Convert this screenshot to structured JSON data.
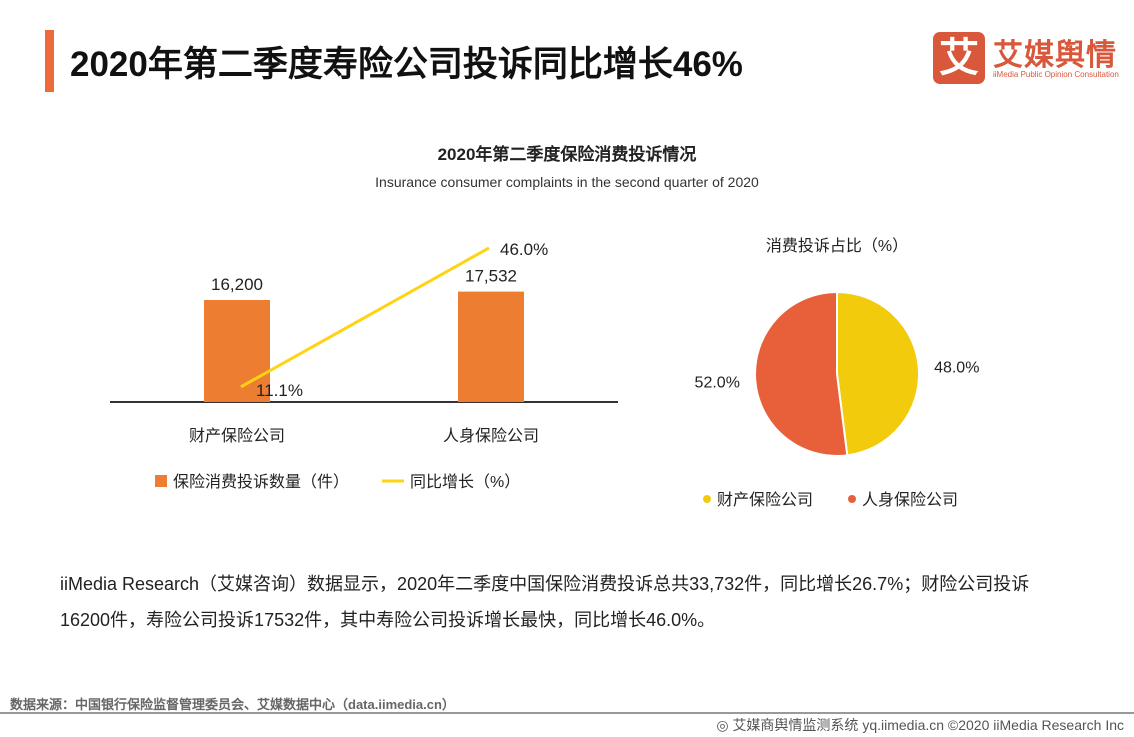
{
  "header": {
    "title": "2020年第二季度寿险公司投诉同比增长46%",
    "accent_color": "#ED6A3A"
  },
  "logo": {
    "glyph": "艾",
    "name": "艾媒舆情",
    "tagline": "iiMedia Public Opinion Consultation"
  },
  "chart_data": [
    {
      "type": "bar",
      "title": "2020年第二季度保险消费投诉情况",
      "subtitle": "Insurance consumer complaints in the second quarter of 2020",
      "categories": [
        "财产保险公司",
        "人身保险公司"
      ],
      "series": [
        {
          "name": "保险消费投诉数量（件）",
          "type": "bar",
          "values": [
            16200,
            17532
          ],
          "labels": [
            "16,200",
            "17,532"
          ],
          "color": "#ED7D31"
        },
        {
          "name": "同比增长（%）",
          "type": "line",
          "values": [
            11.1,
            46.0
          ],
          "labels": [
            "11.1%",
            "46.0%"
          ],
          "color": "#FFD314"
        }
      ],
      "legend": "bottom"
    },
    {
      "type": "pie",
      "title": "消费投诉占比（%）",
      "slices": [
        {
          "name": "财产保险公司",
          "value": 48.0,
          "label": "48.0%",
          "color": "#F2CB0C"
        },
        {
          "name": "人身保险公司",
          "value": 52.0,
          "label": "52.0%",
          "color": "#E8603A"
        }
      ],
      "legend": "bottom"
    }
  ],
  "description": "iiMedia Research（艾媒咨询）数据显示，2020年二季度中国保险消费投诉总共33,732件，同比增长26.7%；财险公司投诉16200件，寿险公司投诉17532件，其中寿险公司投诉增长最快，同比增长46.0%。",
  "source": "数据来源：中国银行保险监督管理委员会、艾媒数据中心（data.iimedia.cn）",
  "footer": "艾媒商舆情监测系统 yq.iimedia.cn  ©2020  iiMedia Research  Inc"
}
